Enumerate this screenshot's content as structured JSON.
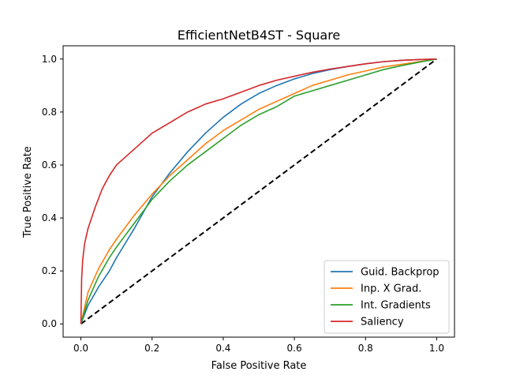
{
  "chart_data": {
    "type": "line",
    "title": "EfficientNetB4ST - Square",
    "xlabel": "False Positive Rate",
    "ylabel": "True Positive Rate",
    "xlim": [
      -0.05,
      1.05
    ],
    "ylim": [
      -0.05,
      1.05
    ],
    "xticks": [
      "0.0",
      "0.2",
      "0.4",
      "0.6",
      "0.8",
      "1.0"
    ],
    "yticks": [
      "0.0",
      "0.2",
      "0.4",
      "0.6",
      "0.8",
      "1.0"
    ],
    "grid": false,
    "legend_position": "lower-right",
    "series": [
      {
        "name": "Guid. Backprop",
        "color": "#1f77b4",
        "x": [
          0.0,
          0.02,
          0.05,
          0.08,
          0.1,
          0.15,
          0.2,
          0.25,
          0.3,
          0.35,
          0.4,
          0.45,
          0.5,
          0.55,
          0.6,
          0.65,
          0.7,
          0.75,
          0.8,
          0.85,
          0.9,
          0.95,
          1.0
        ],
        "y": [
          0.0,
          0.07,
          0.14,
          0.2,
          0.25,
          0.36,
          0.48,
          0.57,
          0.65,
          0.72,
          0.78,
          0.83,
          0.87,
          0.9,
          0.925,
          0.945,
          0.96,
          0.972,
          0.982,
          0.99,
          0.995,
          0.998,
          1.0
        ]
      },
      {
        "name": "Inp. X Grad.",
        "color": "#ff7f0e",
        "x": [
          0.0,
          0.02,
          0.05,
          0.08,
          0.1,
          0.15,
          0.2,
          0.25,
          0.3,
          0.35,
          0.4,
          0.45,
          0.5,
          0.55,
          0.6,
          0.65,
          0.7,
          0.75,
          0.8,
          0.85,
          0.9,
          0.95,
          1.0
        ],
        "y": [
          0.0,
          0.12,
          0.21,
          0.28,
          0.32,
          0.41,
          0.49,
          0.56,
          0.62,
          0.68,
          0.73,
          0.77,
          0.81,
          0.84,
          0.87,
          0.9,
          0.92,
          0.94,
          0.955,
          0.97,
          0.98,
          0.99,
          1.0
        ]
      },
      {
        "name": "Int. Gradients",
        "color": "#2ca02c",
        "x": [
          0.0,
          0.02,
          0.05,
          0.08,
          0.1,
          0.15,
          0.2,
          0.25,
          0.3,
          0.35,
          0.4,
          0.45,
          0.5,
          0.55,
          0.6,
          0.65,
          0.7,
          0.75,
          0.8,
          0.85,
          0.9,
          0.95,
          1.0
        ],
        "y": [
          0.0,
          0.09,
          0.18,
          0.25,
          0.29,
          0.38,
          0.47,
          0.54,
          0.6,
          0.65,
          0.7,
          0.75,
          0.79,
          0.82,
          0.86,
          0.88,
          0.9,
          0.92,
          0.94,
          0.96,
          0.975,
          0.988,
          1.0
        ]
      },
      {
        "name": "Saliency",
        "color": "#d62728",
        "x": [
          0.0,
          0.002,
          0.005,
          0.01,
          0.02,
          0.04,
          0.06,
          0.08,
          0.1,
          0.15,
          0.2,
          0.25,
          0.3,
          0.35,
          0.4,
          0.45,
          0.5,
          0.55,
          0.6,
          0.65,
          0.7,
          0.75,
          0.8,
          0.85,
          0.9,
          0.95,
          1.0
        ],
        "y": [
          0.0,
          0.17,
          0.24,
          0.3,
          0.36,
          0.44,
          0.51,
          0.56,
          0.6,
          0.66,
          0.72,
          0.76,
          0.8,
          0.83,
          0.85,
          0.875,
          0.9,
          0.92,
          0.935,
          0.95,
          0.962,
          0.972,
          0.982,
          0.99,
          0.995,
          0.998,
          1.0
        ]
      }
    ],
    "reference_line": {
      "x": [
        0,
        1
      ],
      "y": [
        0,
        1
      ],
      "color": "#000000",
      "style": "dashed"
    }
  }
}
